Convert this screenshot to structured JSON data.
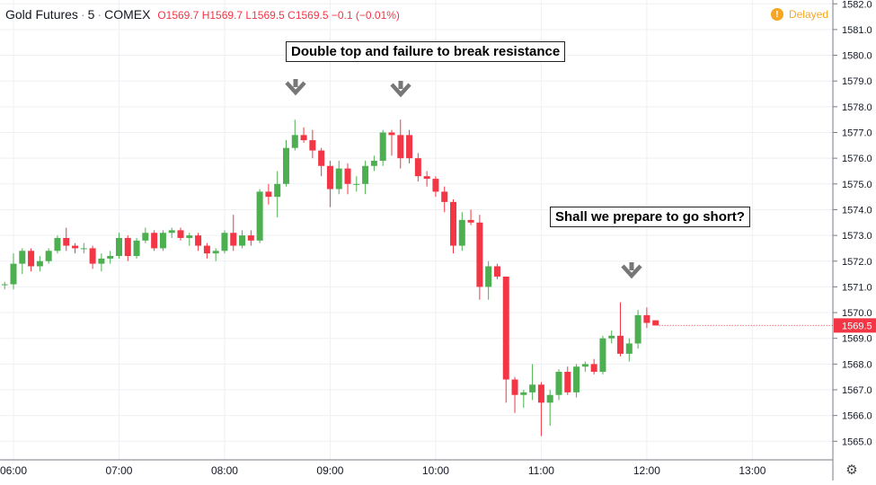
{
  "header": {
    "symbol": "Gold Futures",
    "interval": "5",
    "exchange": "COMEX",
    "open_label": "O",
    "open": "1569.7",
    "high_label": "H",
    "high": "1569.7",
    "low_label": "L",
    "low": "1569.5",
    "close_label": "C",
    "close": "1569.5",
    "change": "−0.1 (−0.01%)",
    "delayed": "Delayed"
  },
  "annotations": {
    "double_top": "Double top and failure to break resistance",
    "short": "Shall we prepare to go short?"
  },
  "colors": {
    "up": "#4caf50",
    "down": "#f23645",
    "grid": "#eef0f3",
    "axis": "#787b86",
    "price_tag": "#f23645"
  },
  "chart_data": {
    "type": "candlestick",
    "x_tick_labels": [
      "06:00",
      "07:00",
      "08:00",
      "09:00",
      "10:00",
      "11:00",
      "12:00",
      "13:00"
    ],
    "y_tick_labels": [
      "1565.0",
      "1566.0",
      "1567.0",
      "1568.0",
      "1569.0",
      "1570.0",
      "1571.0",
      "1572.0",
      "1573.0",
      "1574.0",
      "1575.0",
      "1576.0",
      "1577.0",
      "1578.0",
      "1579.0",
      "1580.0",
      "1581.0",
      "1582.0"
    ],
    "ylim": [
      1564.5,
      1582.0
    ],
    "last_price": "1569.5",
    "grid": true,
    "candles": [
      {
        "t": "05:55",
        "o": 1571.1,
        "h": 1571.2,
        "l": 1570.9,
        "c": 1571.1
      },
      {
        "t": "06:00",
        "o": 1571.1,
        "h": 1572.3,
        "l": 1570.9,
        "c": 1571.9
      },
      {
        "t": "06:05",
        "o": 1571.9,
        "h": 1572.5,
        "l": 1571.5,
        "c": 1572.4
      },
      {
        "t": "06:10",
        "o": 1572.4,
        "h": 1572.5,
        "l": 1571.6,
        "c": 1571.8
      },
      {
        "t": "06:15",
        "o": 1571.8,
        "h": 1572.2,
        "l": 1571.6,
        "c": 1572.0
      },
      {
        "t": "06:20",
        "o": 1572.0,
        "h": 1572.5,
        "l": 1571.9,
        "c": 1572.4
      },
      {
        "t": "06:25",
        "o": 1572.4,
        "h": 1573.0,
        "l": 1572.3,
        "c": 1572.9
      },
      {
        "t": "06:30",
        "o": 1572.9,
        "h": 1573.3,
        "l": 1572.4,
        "c": 1572.6
      },
      {
        "t": "06:35",
        "o": 1572.6,
        "h": 1572.7,
        "l": 1572.3,
        "c": 1572.5
      },
      {
        "t": "06:40",
        "o": 1572.5,
        "h": 1572.7,
        "l": 1572.3,
        "c": 1572.5
      },
      {
        "t": "06:45",
        "o": 1572.5,
        "h": 1572.6,
        "l": 1571.7,
        "c": 1571.9
      },
      {
        "t": "06:50",
        "o": 1571.9,
        "h": 1572.3,
        "l": 1571.6,
        "c": 1572.1
      },
      {
        "t": "06:55",
        "o": 1572.1,
        "h": 1572.4,
        "l": 1571.9,
        "c": 1572.2
      },
      {
        "t": "07:00",
        "o": 1572.2,
        "h": 1573.1,
        "l": 1572.1,
        "c": 1572.9
      },
      {
        "t": "07:05",
        "o": 1572.9,
        "h": 1573.0,
        "l": 1572.0,
        "c": 1572.2
      },
      {
        "t": "07:10",
        "o": 1572.2,
        "h": 1572.9,
        "l": 1572.1,
        "c": 1572.8
      },
      {
        "t": "07:15",
        "o": 1572.8,
        "h": 1573.3,
        "l": 1572.7,
        "c": 1573.1
      },
      {
        "t": "07:20",
        "o": 1573.1,
        "h": 1573.2,
        "l": 1572.4,
        "c": 1572.5
      },
      {
        "t": "07:25",
        "o": 1572.5,
        "h": 1573.2,
        "l": 1572.4,
        "c": 1573.1
      },
      {
        "t": "07:30",
        "o": 1573.1,
        "h": 1573.3,
        "l": 1572.9,
        "c": 1573.2
      },
      {
        "t": "07:35",
        "o": 1573.2,
        "h": 1573.3,
        "l": 1572.8,
        "c": 1572.9
      },
      {
        "t": "07:40",
        "o": 1572.9,
        "h": 1573.1,
        "l": 1572.6,
        "c": 1573.0
      },
      {
        "t": "07:45",
        "o": 1573.0,
        "h": 1573.1,
        "l": 1572.4,
        "c": 1572.6
      },
      {
        "t": "07:50",
        "o": 1572.6,
        "h": 1572.7,
        "l": 1572.1,
        "c": 1572.3
      },
      {
        "t": "07:55",
        "o": 1572.3,
        "h": 1572.5,
        "l": 1572.0,
        "c": 1572.4
      },
      {
        "t": "08:00",
        "o": 1572.4,
        "h": 1573.2,
        "l": 1572.3,
        "c": 1573.1
      },
      {
        "t": "08:05",
        "o": 1573.1,
        "h": 1573.8,
        "l": 1572.4,
        "c": 1572.6
      },
      {
        "t": "08:10",
        "o": 1572.6,
        "h": 1573.2,
        "l": 1572.5,
        "c": 1573.0
      },
      {
        "t": "08:15",
        "o": 1573.0,
        "h": 1573.2,
        "l": 1572.6,
        "c": 1572.8
      },
      {
        "t": "08:20",
        "o": 1572.8,
        "h": 1574.8,
        "l": 1572.7,
        "c": 1574.7
      },
      {
        "t": "08:25",
        "o": 1574.7,
        "h": 1575.0,
        "l": 1574.2,
        "c": 1574.5
      },
      {
        "t": "08:30",
        "o": 1574.5,
        "h": 1575.5,
        "l": 1573.7,
        "c": 1575.0
      },
      {
        "t": "08:35",
        "o": 1575.0,
        "h": 1576.7,
        "l": 1574.9,
        "c": 1576.4
      },
      {
        "t": "08:40",
        "o": 1576.4,
        "h": 1577.5,
        "l": 1576.3,
        "c": 1576.9
      },
      {
        "t": "08:45",
        "o": 1576.9,
        "h": 1577.2,
        "l": 1576.6,
        "c": 1576.7
      },
      {
        "t": "08:50",
        "o": 1576.7,
        "h": 1577.1,
        "l": 1576.0,
        "c": 1576.3
      },
      {
        "t": "08:55",
        "o": 1576.3,
        "h": 1576.4,
        "l": 1575.3,
        "c": 1575.7
      },
      {
        "t": "09:00",
        "o": 1575.7,
        "h": 1575.9,
        "l": 1574.1,
        "c": 1574.8
      },
      {
        "t": "09:05",
        "o": 1574.8,
        "h": 1575.9,
        "l": 1574.6,
        "c": 1575.6
      },
      {
        "t": "09:10",
        "o": 1575.6,
        "h": 1575.8,
        "l": 1574.6,
        "c": 1575.0
      },
      {
        "t": "09:15",
        "o": 1575.0,
        "h": 1575.3,
        "l": 1574.7,
        "c": 1575.0
      },
      {
        "t": "09:20",
        "o": 1575.0,
        "h": 1575.9,
        "l": 1574.6,
        "c": 1575.7
      },
      {
        "t": "09:25",
        "o": 1575.7,
        "h": 1576.1,
        "l": 1575.5,
        "c": 1575.9
      },
      {
        "t": "09:30",
        "o": 1575.9,
        "h": 1577.1,
        "l": 1575.7,
        "c": 1577.0
      },
      {
        "t": "09:35",
        "o": 1577.0,
        "h": 1577.1,
        "l": 1576.1,
        "c": 1576.9
      },
      {
        "t": "09:40",
        "o": 1576.9,
        "h": 1577.5,
        "l": 1575.6,
        "c": 1576.0
      },
      {
        "t": "09:45",
        "o": 1576.9,
        "h": 1577.1,
        "l": 1575.8,
        "c": 1576.0
      },
      {
        "t": "09:50",
        "o": 1576.0,
        "h": 1576.2,
        "l": 1575.1,
        "c": 1575.3
      },
      {
        "t": "09:55",
        "o": 1575.3,
        "h": 1575.5,
        "l": 1574.9,
        "c": 1575.2
      },
      {
        "t": "10:00",
        "o": 1575.2,
        "h": 1575.3,
        "l": 1574.5,
        "c": 1574.7
      },
      {
        "t": "10:05",
        "o": 1574.7,
        "h": 1574.9,
        "l": 1573.9,
        "c": 1574.3
      },
      {
        "t": "10:10",
        "o": 1574.3,
        "h": 1574.4,
        "l": 1572.3,
        "c": 1572.6
      },
      {
        "t": "10:15",
        "o": 1572.6,
        "h": 1573.9,
        "l": 1572.4,
        "c": 1573.6
      },
      {
        "t": "10:20",
        "o": 1573.6,
        "h": 1574.0,
        "l": 1573.4,
        "c": 1573.5
      },
      {
        "t": "10:25",
        "o": 1573.5,
        "h": 1573.8,
        "l": 1570.5,
        "c": 1571.0
      },
      {
        "t": "10:30",
        "o": 1571.0,
        "h": 1572.0,
        "l": 1570.5,
        "c": 1571.8
      },
      {
        "t": "10:35",
        "o": 1571.8,
        "h": 1571.9,
        "l": 1571.3,
        "c": 1571.4
      },
      {
        "t": "10:40",
        "o": 1571.4,
        "h": 1571.4,
        "l": 1566.5,
        "c": 1567.4
      },
      {
        "t": "10:45",
        "o": 1567.4,
        "h": 1567.5,
        "l": 1566.1,
        "c": 1566.8
      },
      {
        "t": "10:50",
        "o": 1566.8,
        "h": 1567.0,
        "l": 1566.3,
        "c": 1566.9
      },
      {
        "t": "10:55",
        "o": 1566.9,
        "h": 1568.0,
        "l": 1566.6,
        "c": 1567.2
      },
      {
        "t": "11:00",
        "o": 1567.2,
        "h": 1567.3,
        "l": 1565.2,
        "c": 1566.5
      },
      {
        "t": "11:05",
        "o": 1566.5,
        "h": 1567.0,
        "l": 1565.6,
        "c": 1566.8
      },
      {
        "t": "11:10",
        "o": 1566.8,
        "h": 1567.8,
        "l": 1566.6,
        "c": 1567.7
      },
      {
        "t": "11:15",
        "o": 1567.7,
        "h": 1567.9,
        "l": 1566.8,
        "c": 1566.9
      },
      {
        "t": "11:20",
        "o": 1566.9,
        "h": 1568.0,
        "l": 1566.7,
        "c": 1567.9
      },
      {
        "t": "11:25",
        "o": 1567.9,
        "h": 1568.1,
        "l": 1567.7,
        "c": 1568.0
      },
      {
        "t": "11:30",
        "o": 1568.0,
        "h": 1568.2,
        "l": 1567.6,
        "c": 1567.7
      },
      {
        "t": "11:35",
        "o": 1567.7,
        "h": 1569.1,
        "l": 1567.6,
        "c": 1569.0
      },
      {
        "t": "11:40",
        "o": 1569.0,
        "h": 1569.3,
        "l": 1568.8,
        "c": 1569.1
      },
      {
        "t": "11:45",
        "o": 1569.1,
        "h": 1570.4,
        "l": 1568.3,
        "c": 1568.4
      },
      {
        "t": "11:50",
        "o": 1568.4,
        "h": 1569.0,
        "l": 1568.1,
        "c": 1568.8
      },
      {
        "t": "11:55",
        "o": 1568.8,
        "h": 1570.1,
        "l": 1568.6,
        "c": 1569.9
      },
      {
        "t": "12:00",
        "o": 1569.9,
        "h": 1570.2,
        "l": 1569.4,
        "c": 1569.6
      },
      {
        "t": "12:05",
        "o": 1569.7,
        "h": 1569.7,
        "l": 1569.5,
        "c": 1569.5
      }
    ]
  }
}
